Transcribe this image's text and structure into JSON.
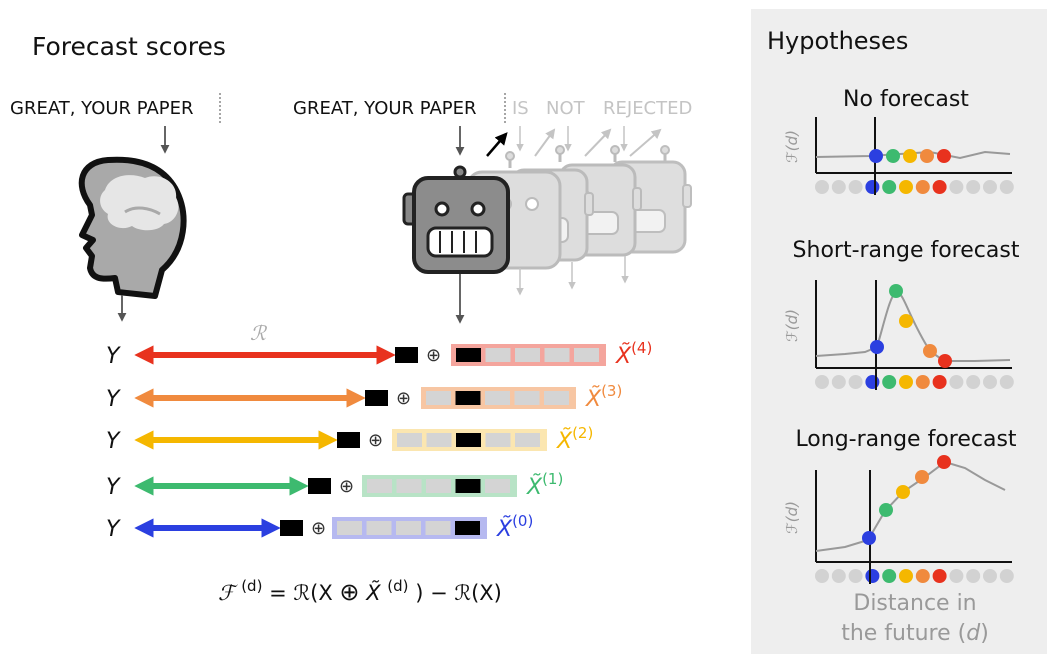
{
  "left": {
    "title": "Forecast scores",
    "human_prompt": "GREAT, YOUR PAPER",
    "model_prompt": "GREAT, YOUR PAPER",
    "future_words": [
      "IS",
      "NOT",
      "REJECTED"
    ],
    "R_label": "ℛ",
    "Y_label": "Y",
    "oplus": "⊕",
    "formula": {
      "F": "ℱ",
      "sup_d": "(d)",
      "eq_part1": " = ℛ(X ",
      "oplus": "⊕",
      "Xt": " X̃",
      "sup_d2": "(d)",
      "eq_part2": ") − ℛ(X)"
    },
    "rows": [
      {
        "label": "X̃",
        "sup": "(4)",
        "color": "#e8321e",
        "box_tint": "#f4a59d",
        "black_index": 0
      },
      {
        "label": "X̃",
        "sup": "(3)",
        "color": "#f08a3e",
        "box_tint": "#f7c6a3",
        "black_index": 1
      },
      {
        "label": "X̃",
        "sup": "(2)",
        "color": "#f5b700",
        "box_tint": "#fbe6b0",
        "black_index": 2
      },
      {
        "label": "X̃",
        "sup": "(1)",
        "color": "#3dba6f",
        "box_tint": "#b8e3c6",
        "black_index": 3
      },
      {
        "label": "X̃",
        "sup": "(0)",
        "color": "#2b3fe0",
        "box_tint": "#b6b9f0",
        "black_index": 4
      }
    ]
  },
  "right": {
    "title": "Hypotheses",
    "plots": [
      {
        "title": "No forecast",
        "ylabel": "ℱ(d)"
      },
      {
        "title": "Short-range forecast",
        "ylabel": "ℱ(d)"
      },
      {
        "title": "Long-range forecast",
        "ylabel": "ℱ(d)"
      }
    ],
    "xlabel_line1": "Distance in",
    "xlabel_line2": "the future (",
    "xlabel_d": "d",
    "xlabel_end": ")",
    "dot_colors": [
      "#2b3fe0",
      "#3dba6f",
      "#f5b700",
      "#f08a3e",
      "#e8321e"
    ]
  }
}
